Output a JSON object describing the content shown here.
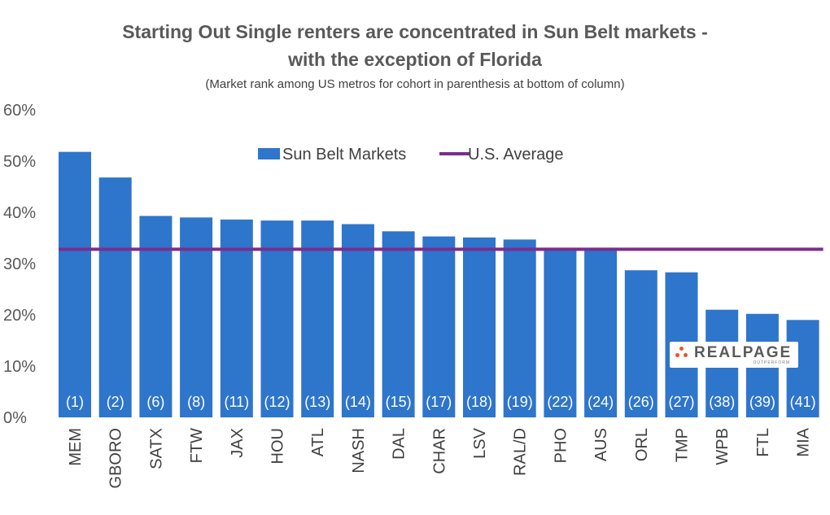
{
  "chart_data": {
    "type": "bar",
    "title_line1": "Starting Out Single renters are concentrated in Sun Belt markets -",
    "title_line2": "with the exception of Florida",
    "subtitle": "(Market rank among US metros for cohort in parenthesis at bottom of column)",
    "categories": [
      "MEM",
      "GBORO",
      "SATX",
      "FTW",
      "JAX",
      "HOU",
      "ATL",
      "NASH",
      "DAL",
      "CHAR",
      "LSV",
      "RAL/D",
      "PHO",
      "AUS",
      "ORL",
      "TMP",
      "WPB",
      "FTL",
      "MIA"
    ],
    "series": [
      {
        "name": "Sun Belt Markets",
        "color": "#2e75cc",
        "values": [
          51.8,
          46.8,
          39.3,
          39.0,
          38.6,
          38.4,
          38.4,
          37.7,
          36.3,
          35.3,
          35.1,
          34.7,
          33.1,
          33.0,
          28.7,
          28.3,
          21.0,
          20.2,
          19.0
        ]
      },
      {
        "name": "U.S. Average",
        "color": "#7b2d8e",
        "type": "line",
        "value": 32.8
      }
    ],
    "bar_labels": [
      "(1)",
      "(2)",
      "(6)",
      "(8)",
      "(11)",
      "(12)",
      "(13)",
      "(14)",
      "(15)",
      "(17)",
      "(18)",
      "(19)",
      "(22)",
      "(24)",
      "(26)",
      "(27)",
      "(38)",
      "(39)",
      "(41)"
    ],
    "yticks": [
      "0%",
      "10%",
      "20%",
      "30%",
      "40%",
      "50%",
      "60%"
    ],
    "ylim": [
      0,
      60
    ],
    "legend_position": "top-center",
    "grid": false
  },
  "logo": {
    "text": "REALPAGE",
    "tagline": "OUTPERFORM"
  }
}
